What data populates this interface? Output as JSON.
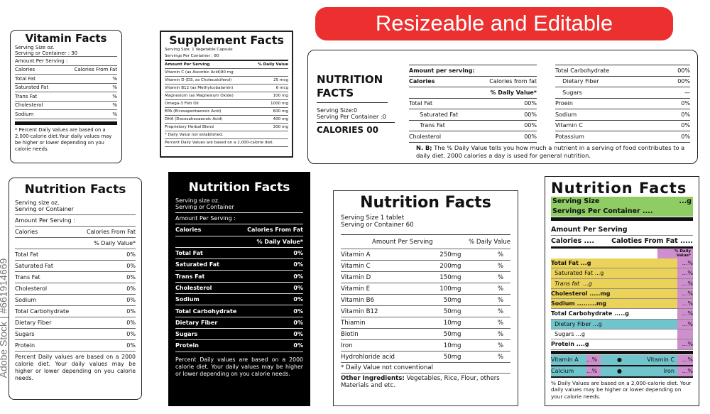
{
  "banner": "Resizeable and Editable",
  "watermark": "Adobe Stock | #661914669",
  "vitamin": {
    "title": "Vitamin Facts",
    "serving_size": "Serving Size  oz.",
    "serving_container": "Serving or Container : 30",
    "amount": "Amount Per Serving :",
    "rows": [
      [
        "Calories",
        "Calories From Fat"
      ],
      [
        "Total Fat",
        "%"
      ],
      [
        "Saturated Fat",
        "%"
      ],
      [
        "Trans Fat",
        "%"
      ],
      [
        "Cholesterol",
        "%"
      ],
      [
        "Sodium",
        "%"
      ]
    ],
    "note": "*   Percent Daily Values are based on a 2,000-calorie diet.Your daily values may be higher or lower depending on you calorie needs."
  },
  "supplement": {
    "title": "Supplement Facts",
    "serving_size": "Serving Size: 1 Vegetable Capsule",
    "servings": "Servings Per Container : 80",
    "rows": [
      [
        "Amount Per Serving",
        "% Daily Value"
      ],
      [
        "Vitamin C (as Ascorbic Acid)90 mg",
        ""
      ],
      [
        "Vitamin D (D3, as Cholecalciferol)",
        "25 mcg"
      ],
      [
        "Vitamin B12 (as Methylcobalamin)",
        "6 mcg"
      ],
      [
        "Magnesium (as Magnesium Oxide)",
        "100 mg"
      ],
      [
        "Omega-3 Fish Oil",
        "1000 mg"
      ],
      [
        "EPA (Eicosapentaenoic Acid)",
        "600 mg"
      ],
      [
        "DHA (Docosahexaenoic Acid)",
        "400 mg"
      ],
      [
        "Proprietary Herbal Blend",
        "300 mg"
      ],
      [
        "* Daily Value not established.",
        ""
      ],
      [
        "Percent Daily Values are based on a 2,000-calorie diet.",
        ""
      ]
    ]
  },
  "wide": {
    "title": "NUTRITION FACTS",
    "serving_size": "Serving Size:0",
    "serving_container": "Serving Per Container :0",
    "calories": "CALORIES 00",
    "col1": [
      [
        "Amount per serving:",
        ""
      ],
      [
        "Calories",
        "Calories from fat"
      ],
      [
        "",
        "% Daily  Value*"
      ],
      [
        "Total Fat",
        "00%"
      ],
      [
        "      Saturated Fat",
        "00%"
      ],
      [
        "      Trans Fat",
        "00%"
      ],
      [
        "Cholesterol",
        "00%"
      ]
    ],
    "col2": [
      [
        "Total Carbohydrate",
        "00%"
      ],
      [
        "    Dietary Fiber",
        "00%"
      ],
      [
        "    Sugars",
        "—"
      ],
      [
        "Proein",
        "0%"
      ],
      [
        "Sodium",
        "0%"
      ],
      [
        "Vitamin C",
        "0%"
      ],
      [
        "Potassium",
        "0%"
      ]
    ],
    "nb_label": "N. B;",
    "nb": "The % Daily Value tells you how much a nutrient in a serving of food contributes to a daily diet. 2000 calories a day is used for general nutrition."
  },
  "nf1": {
    "title": "Nutrition Facts",
    "serving_size": "Serving size oz.",
    "serving_container": "Serving or Container",
    "amount": "Amount Per Serving :",
    "rows": [
      [
        "Calories",
        "Calories From Fat"
      ],
      [
        "",
        "% Daily Value*"
      ],
      [
        "Total Fat",
        "0%"
      ],
      [
        "Saturated Fat",
        "0%"
      ],
      [
        "Trans  Fat",
        "0%"
      ],
      [
        "Cholesterol",
        "0%"
      ],
      [
        "Sodium",
        "0%"
      ],
      [
        "Total Carbohydrate",
        "0%"
      ],
      [
        "Dietary Fiber",
        "0%"
      ],
      [
        "Sugars",
        "0%"
      ],
      [
        "Protein",
        "0%"
      ]
    ],
    "note": "Percent Daily values are based on a 2000 calorie diet. Your daily values may be higher or lower depending on you calorie needs."
  },
  "black": {
    "title": "Nutrition Facts",
    "serving_size": "Serving size oz.",
    "serving_container": "Serving or Container",
    "amount": "Amount Per Serving :",
    "rows": [
      [
        "Calories",
        "Calories From Fat"
      ],
      [
        "",
        "% Daily Value*"
      ],
      [
        "Total Fat",
        "0%"
      ],
      [
        "Saturated Fat",
        "0%"
      ],
      [
        "Trans Fat",
        "0%"
      ],
      [
        "Cholesterol",
        "0%"
      ],
      [
        "Sodium",
        "0%"
      ],
      [
        "Total Carbohydrate",
        "0%"
      ],
      [
        "Dietary Fiber",
        "0%"
      ],
      [
        "Sugars",
        "0%"
      ],
      [
        "Protein",
        "0%"
      ]
    ],
    "note": "Percent Daily values are based on a 2000 calorie diet. Your daily values may be higher or lower depending on you calorie needs."
  },
  "tablet": {
    "title": "Nutrition Facts",
    "serving_size": "Serving Size  1 tablet",
    "serving_container": "Serving or Container  60",
    "header": [
      "Amount Per Serving",
      "% Daily  Value"
    ],
    "rows": [
      [
        "Vitamin A",
        "250mg",
        "%"
      ],
      [
        "Vitamin C",
        "200mg",
        "%"
      ],
      [
        "Vitamin D",
        "150mg",
        "%"
      ],
      [
        "Vitamin E",
        "100mg",
        "%"
      ],
      [
        "Vitamin B6",
        "50mg",
        "%"
      ],
      [
        "Vitamin B12",
        "50mg",
        "%"
      ],
      [
        "Thiamin",
        "10mg",
        "%"
      ],
      [
        "Biotin",
        "50mg",
        "%"
      ],
      [
        "Iron",
        "10mg",
        "%"
      ],
      [
        "Hydrohloride acid",
        "50mg",
        "%"
      ]
    ],
    "dv_note": "* Daily Value not conventional",
    "other_label": "Other Ingredients:",
    "other": "Vegetables, Rice, Flour, others Materials and etc."
  },
  "colored": {
    "title": "Nutrition Facts",
    "serving_size": "Serving Size",
    "serving_size_val": "...g",
    "servings": "Servings Per Container ....",
    "amount": "Amount Per Serving",
    "calories": "Calories ....",
    "calories_fat": "Caloties From Fat .....",
    "dv": "% Daily Value*",
    "rows": [
      [
        "Total Fat ...g",
        "...%",
        "#ebd35a",
        true
      ],
      [
        "  Saturated Fat ...g",
        "...%",
        "#ebd35a",
        false
      ],
      [
        "  Trans fat  ...g",
        "...%",
        "#ebd35a",
        false
      ],
      [
        "Cholesterol .....mg",
        "...%",
        "#ebd35a",
        true
      ],
      [
        "Sodium .........mg",
        "...%",
        "#ebd35a",
        true
      ],
      [
        "Total Carbohydrate .....g",
        "...%",
        "#ffffff",
        true
      ],
      [
        "  Dietary Fiber ...g",
        "...%",
        "#70c4cc",
        false
      ],
      [
        "  Sugars ...g",
        "",
        "#ffffff",
        false
      ],
      [
        "Protein ....g",
        "...%",
        "#ffffff",
        true
      ]
    ],
    "vitamins": [
      [
        "Vitamin A",
        "...%",
        "Vitamin C",
        "...%"
      ],
      [
        "Calcium",
        "...%",
        "Iron",
        "...%"
      ]
    ],
    "note": "% Daily Values are based on a 2,000-calorie diet. Your daily values may be higher or lower depending on your calorie needs.",
    "colors": {
      "green": "#8fcd64",
      "yellow": "#ebd35a",
      "teal": "#70c4cc",
      "purple": "#cf8fce"
    }
  }
}
